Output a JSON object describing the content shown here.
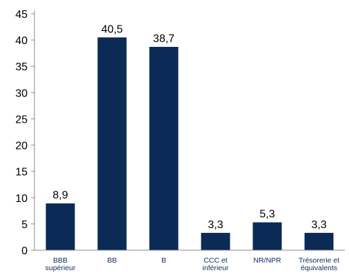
{
  "chart_data": {
    "type": "bar",
    "categories": [
      [
        "BBB",
        "supérieur"
      ],
      [
        "BB"
      ],
      [
        "B"
      ],
      [
        "CCC et",
        "inférieur"
      ],
      [
        "NR/NPR"
      ],
      [
        "Trésorerie et",
        "équivalents"
      ]
    ],
    "values": [
      8.9,
      40.5,
      38.7,
      3.3,
      5.3,
      3.3
    ],
    "value_labels": [
      "8,9",
      "40,5",
      "38,7",
      "3,3",
      "5,3",
      "3,3"
    ],
    "yticks": [
      "0",
      "5",
      "10",
      "15",
      "20",
      "25",
      "30",
      "35",
      "40",
      "45"
    ],
    "ylim": [
      0,
      45
    ],
    "title": "",
    "xlabel": "",
    "ylabel": "",
    "grid": false,
    "legend": "none",
    "colors": {
      "bar": "#0b2a55",
      "axis": "#8a8a8a"
    }
  }
}
